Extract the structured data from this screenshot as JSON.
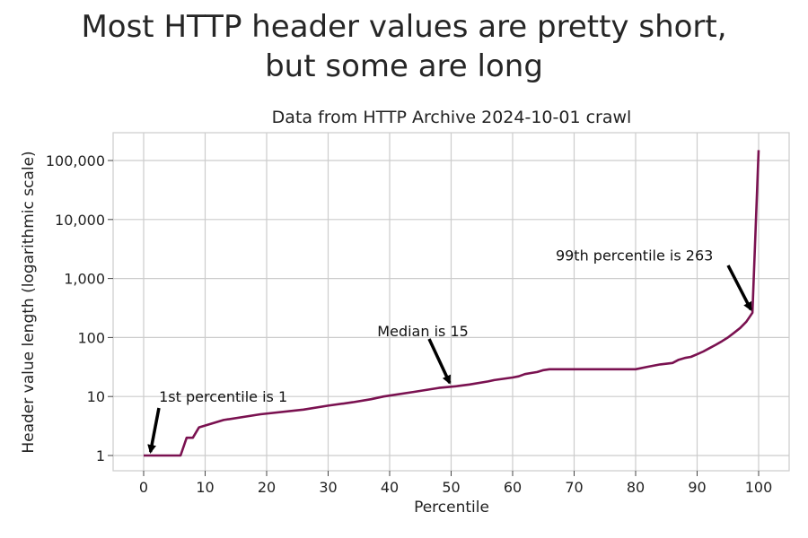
{
  "chart_data": {
    "type": "line",
    "title_lines": [
      "Most HTTP header values are pretty short,",
      "but some are long"
    ],
    "subtitle": "Data from HTTP Archive 2024-10-01 crawl",
    "xlabel": "Percentile",
    "ylabel": "Header value length (logarithmic scale)",
    "xlim": [
      -2,
      102
    ],
    "ylim": [
      0.7,
      200000
    ],
    "y_scale": "log",
    "grid": true,
    "line_color": "#7a1150",
    "x_ticks": [
      0,
      10,
      20,
      30,
      40,
      50,
      60,
      70,
      80,
      90,
      100
    ],
    "x_tick_labels": [
      "0",
      "10",
      "20",
      "30",
      "40",
      "50",
      "60",
      "70",
      "80",
      "90",
      "100"
    ],
    "y_ticks": [
      1,
      10,
      100,
      1000,
      10000,
      100000
    ],
    "y_tick_labels": [
      "1",
      "10",
      "100",
      "1,000",
      "10,000",
      "100,000"
    ],
    "x": [
      0,
      6,
      7,
      8,
      9,
      13,
      19,
      26,
      30,
      34,
      37,
      39,
      44,
      48,
      51,
      53,
      56,
      57,
      60,
      61,
      62,
      63,
      64,
      65,
      66,
      67,
      68,
      72,
      76,
      80,
      82,
      84,
      86,
      87,
      88,
      89,
      90,
      91,
      92,
      93,
      94,
      95,
      96,
      97,
      98,
      99,
      100
    ],
    "y": [
      1,
      1,
      2,
      2,
      3,
      4,
      5,
      6,
      7,
      8,
      9,
      10,
      12,
      14,
      15,
      16,
      18,
      19,
      21,
      22,
      24,
      25,
      26,
      28,
      29,
      29,
      29,
      29,
      29,
      29,
      32,
      35,
      37,
      42,
      45,
      47,
      52,
      58,
      66,
      75,
      86,
      100,
      120,
      145,
      185,
      263,
      150000
    ],
    "annotations": [
      {
        "text": "1st percentile is 1",
        "x": 1,
        "y": 1,
        "text_x": 2.5,
        "text_y": 10
      },
      {
        "text": "Median is 15",
        "x": 50,
        "y": 15,
        "text_x": 38,
        "text_y": 130
      },
      {
        "text": "99th percentile is 263",
        "x": 99,
        "y": 263,
        "text_x": 67,
        "text_y": 2500
      }
    ]
  }
}
